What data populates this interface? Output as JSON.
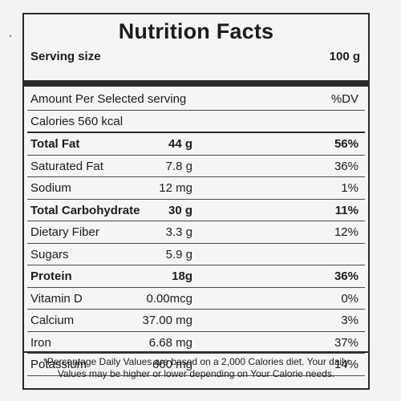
{
  "title": "Nutrition Facts",
  "serving": {
    "label": "Serving size",
    "amount": "100 g"
  },
  "header_row": {
    "label": "Amount Per Selected serving",
    "dv": "%DV"
  },
  "calories": "Calories 560 kcal",
  "nutrients": [
    {
      "name": "Total Fat",
      "qty": "44 g",
      "dv": "56%"
    },
    {
      "name": "Saturated Fat",
      "qty": "7.8 g",
      "dv": "36%"
    },
    {
      "name": "Sodium",
      "qty": "12 mg",
      "dv": "1%"
    },
    {
      "name": "Total Carbohydrate",
      "qty": "30 g",
      "dv": "11%"
    },
    {
      "name": "Dietary Fiber",
      "qty": "3.3 g",
      "dv": "12%"
    },
    {
      "name": "Sugars",
      "qty": "5.9 g",
      "dv": ""
    },
    {
      "name": "Protein",
      "qty": "18g",
      "dv": "36%"
    },
    {
      "name": "Vitamin D",
      "qty": "0.00mcg",
      "dv": "0%"
    },
    {
      "name": "Calcium",
      "qty": "37.00 mg",
      "dv": "3%"
    },
    {
      "name": "Iron",
      "qty": "6.68 mg",
      "dv": "37%"
    },
    {
      "name": "Potassium",
      "qty": "660 mg",
      "dv": "14%"
    }
  ],
  "footnote": "*Percentage Daily Values are based on a 2,000 Calories diet. Your daily Values may be higher or lower depending on Your Calorie needs."
}
